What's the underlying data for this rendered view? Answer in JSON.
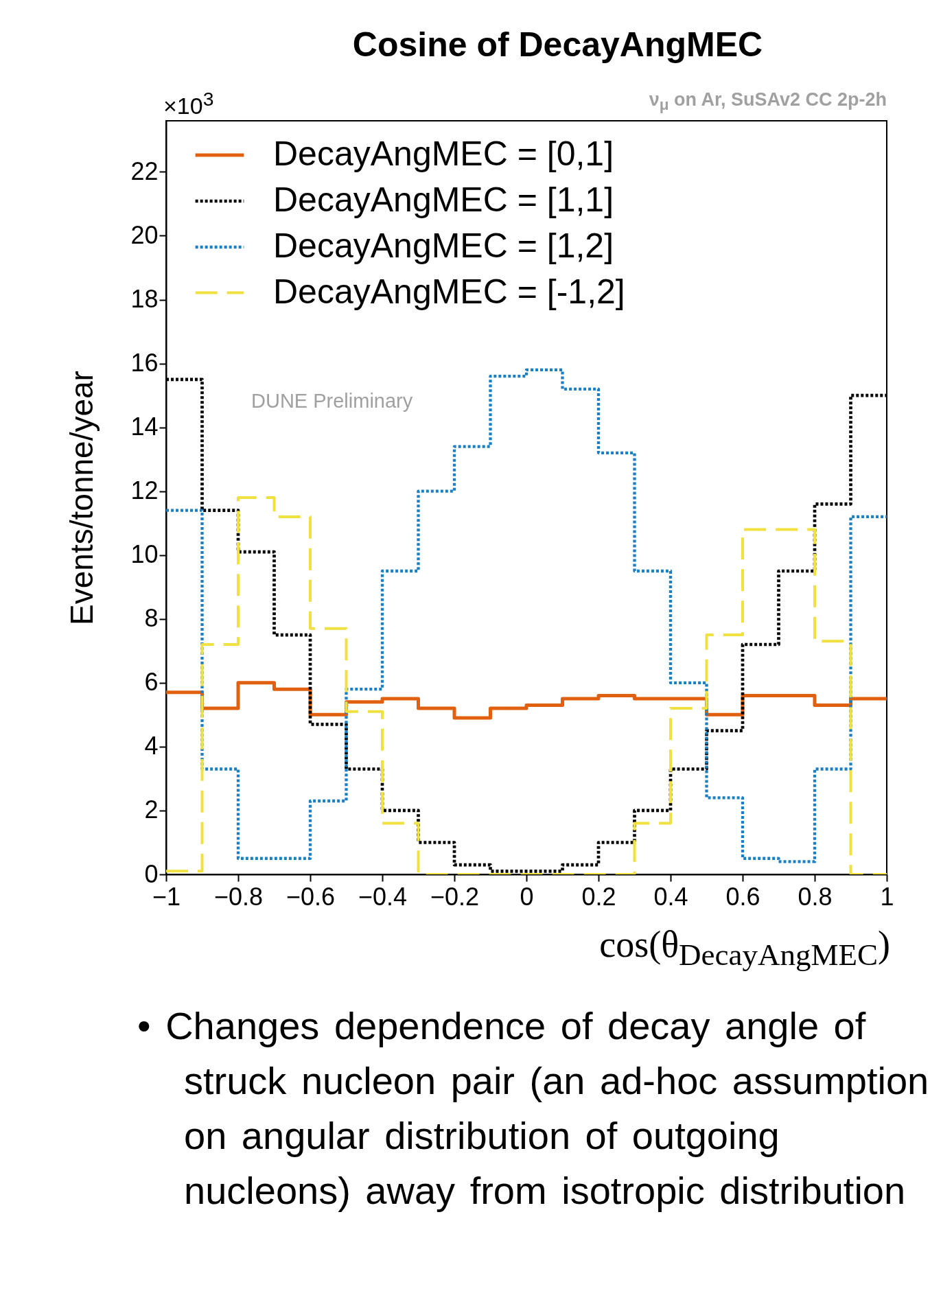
{
  "chart_data": {
    "type": "histogram",
    "title": "Cosine of DecayAngMEC",
    "subtitle": "ν$_{μ}$ on Ar, SuSAv2 CC 2p-2h",
    "xlabel": "cos(θ$_{DecayAngMEC}$)",
    "ylabel": "Events/tonne/year",
    "annotations": [
      "×10$^{3}$",
      "DUNE Preliminary",
      "• Changes dependence of decay angle of struck nucleon pair (an ad-hoc assumption on angular distribution of outgoing nucleons) away from isotropic distribution"
    ],
    "bins": [
      -1,
      -0.9,
      -0.8,
      -0.7,
      -0.6,
      -0.5,
      -0.4,
      -0.3,
      -0.2,
      -0.1,
      0,
      0.1,
      0.2,
      0.3,
      0.4,
      0.5,
      0.6,
      0.7,
      0.8,
      0.9,
      1
    ],
    "xlim": [
      -1,
      1
    ],
    "xticks": [
      {
        "value": -1,
        "label": "−1"
      },
      {
        "value": -0.8,
        "label": "−0.8"
      },
      {
        "value": -0.6,
        "label": "−0.6"
      },
      {
        "value": -0.4,
        "label": "−0.4"
      },
      {
        "value": -0.2,
        "label": "−0.2"
      },
      0,
      0.2,
      0.4,
      0.6,
      0.8,
      1
    ],
    "ylim": [
      0,
      23.6
    ],
    "yticks": [
      0,
      2,
      4,
      6,
      8,
      10,
      12,
      14,
      16,
      18,
      20,
      22
    ],
    "legend": "top",
    "series": [
      {
        "name": "DecayAngMEC = [0,1]",
        "color": "#e0600f",
        "line_style": "solid",
        "values": [
          5.7,
          5.2,
          6.0,
          5.8,
          5.0,
          5.4,
          5.5,
          5.2,
          4.9,
          5.2,
          5.3,
          5.5,
          5.6,
          5.5,
          5.5,
          5.0,
          5.6,
          5.6,
          5.3,
          5.5
        ]
      },
      {
        "name": "DecayAngMEC = [1,1]",
        "color": "#000000",
        "line_style": "dotted",
        "values": [
          15.5,
          11.4,
          10.1,
          7.5,
          4.7,
          3.3,
          2.0,
          1.0,
          0.3,
          0.1,
          0.1,
          0.3,
          1.0,
          2.0,
          3.3,
          4.5,
          7.2,
          9.5,
          11.6,
          15.0
        ]
      },
      {
        "name": "DecayAngMEC = [1,2]",
        "color": "#1a7fc4",
        "line_style": "dotted",
        "values": [
          11.4,
          3.3,
          0.5,
          0.5,
          2.3,
          5.8,
          9.5,
          12.0,
          13.4,
          15.6,
          15.8,
          15.2,
          13.2,
          9.5,
          6.0,
          2.4,
          0.5,
          0.4,
          3.3,
          11.2
        ]
      },
      {
        "name": "DecayAngMEC = [-1,2]",
        "color": "#f0e040",
        "line_style": "dashed",
        "values": [
          0.1,
          7.2,
          11.8,
          11.2,
          7.7,
          5.1,
          1.6,
          0,
          0,
          0,
          0,
          0,
          0,
          1.6,
          5.2,
          7.5,
          10.8,
          10.8,
          7.3,
          0
        ]
      }
    ]
  }
}
